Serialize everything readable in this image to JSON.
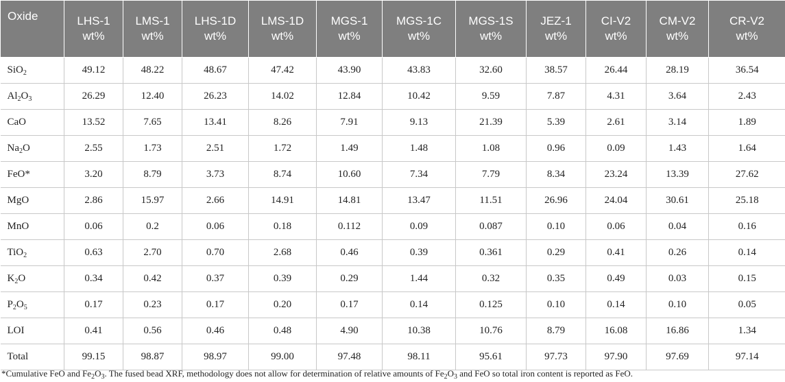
{
  "table": {
    "columns": [
      {
        "name": "Oxide",
        "unit": ""
      },
      {
        "name": "LHS-1",
        "unit": "wt%"
      },
      {
        "name": "LMS-1",
        "unit": "wt%"
      },
      {
        "name": "LHS-1D",
        "unit": "wt%"
      },
      {
        "name": "LMS-1D",
        "unit": "wt%"
      },
      {
        "name": "MGS-1",
        "unit": "wt%"
      },
      {
        "name": "MGS-1C",
        "unit": "wt%"
      },
      {
        "name": "MGS-1S",
        "unit": "wt%"
      },
      {
        "name": "JEZ-1",
        "unit": "wt%"
      },
      {
        "name": "CI-V2",
        "unit": "wt%"
      },
      {
        "name": "CM-V2",
        "unit": "wt%"
      },
      {
        "name": "CR-V2",
        "unit": "wt%"
      }
    ],
    "rows": [
      {
        "oxide": "SiO_2",
        "values": [
          "49.12",
          "48.22",
          "48.67",
          "47.42",
          "43.90",
          "43.83",
          "32.60",
          "38.57",
          "26.44",
          "28.19",
          "36.54"
        ]
      },
      {
        "oxide": "Al_2O_3",
        "values": [
          "26.29",
          "12.40",
          "26.23",
          "14.02",
          "12.84",
          "10.42",
          "9.59",
          "7.87",
          "4.31",
          "3.64",
          "2.43"
        ]
      },
      {
        "oxide": "CaO",
        "values": [
          "13.52",
          "7.65",
          "13.41",
          "8.26",
          "7.91",
          "9.13",
          "21.39",
          "5.39",
          "2.61",
          "3.14",
          "1.89"
        ]
      },
      {
        "oxide": "Na_2O",
        "values": [
          "2.55",
          "1.73",
          "2.51",
          "1.72",
          "1.49",
          "1.48",
          "1.08",
          "0.96",
          "0.09",
          "1.43",
          "1.64"
        ]
      },
      {
        "oxide": "FeO*",
        "values": [
          "3.20",
          "8.79",
          "3.73",
          "8.74",
          "10.60",
          "7.34",
          "7.79",
          "8.34",
          "23.24",
          "13.39",
          "27.62"
        ]
      },
      {
        "oxide": "MgO",
        "values": [
          "2.86",
          "15.97",
          "2.66",
          "14.91",
          "14.81",
          "13.47",
          "11.51",
          "26.96",
          "24.04",
          "30.61",
          "25.18"
        ]
      },
      {
        "oxide": "MnO",
        "values": [
          "0.06",
          "0.2",
          "0.06",
          "0.18",
          "0.112",
          "0.09",
          "0.087",
          "0.10",
          "0.06",
          "0.04",
          "0.16"
        ]
      },
      {
        "oxide": "TiO_2",
        "values": [
          "0.63",
          "2.70",
          "0.70",
          "2.68",
          "0.46",
          "0.39",
          "0.361",
          "0.29",
          "0.41",
          "0.26",
          "0.14"
        ]
      },
      {
        "oxide": "K_2O",
        "values": [
          "0.34",
          "0.42",
          "0.37",
          "0.39",
          "0.29",
          "1.44",
          "0.32",
          "0.35",
          "0.49",
          "0.03",
          "0.15"
        ]
      },
      {
        "oxide": "P_2O_5",
        "values": [
          "0.17",
          "0.23",
          "0.17",
          "0.20",
          "0.17",
          "0.14",
          "0.125",
          "0.10",
          "0.14",
          "0.10",
          "0.05"
        ]
      },
      {
        "oxide": "LOI",
        "values": [
          "0.41",
          "0.56",
          "0.46",
          "0.48",
          "4.90",
          "10.38",
          "10.76",
          "8.79",
          "16.08",
          "16.86",
          "1.34"
        ]
      },
      {
        "oxide": "Total",
        "values": [
          "99.15",
          "98.87",
          "98.97",
          "99.00",
          "97.48",
          "98.11",
          "95.61",
          "97.73",
          "97.90",
          "97.69",
          "97.14"
        ]
      }
    ]
  },
  "footnote": "*Cumulative FeO and Fe_2O_3. The fused bead XRF, methodology does not allow for determination of relative amounts of Fe_2O_3 and FeO so total iron content is reported as FeO.",
  "colors": {
    "header_bg": "#7f7f7f",
    "header_text": "#ffffff",
    "grid": "#c8c8c8"
  }
}
